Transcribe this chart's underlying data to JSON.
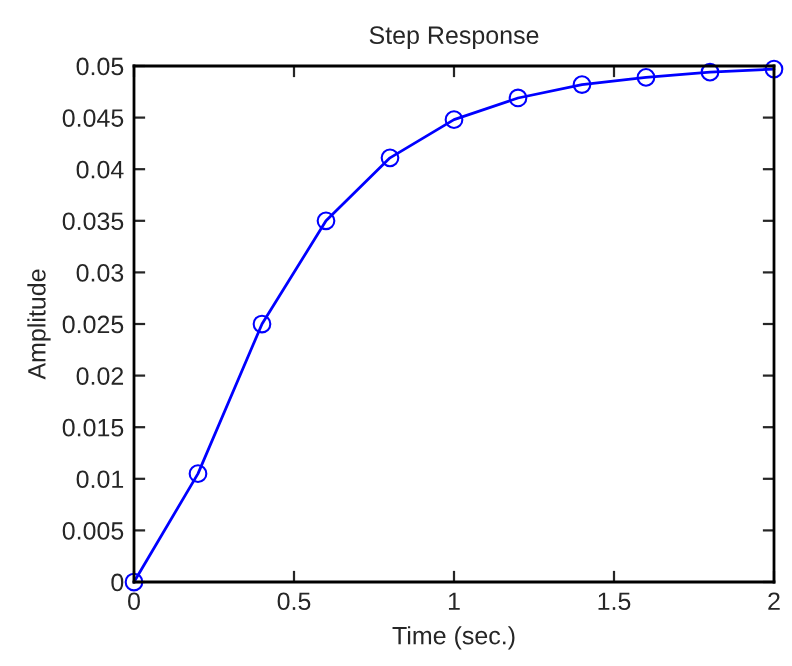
{
  "chart_data": {
    "type": "line",
    "title": "Step Response",
    "xlabel": "Time (sec.)",
    "ylabel": "Amplitude",
    "x": [
      0,
      0.2,
      0.4,
      0.6,
      0.8,
      1.0,
      1.2,
      1.4,
      1.6,
      1.8,
      2.0
    ],
    "series": [
      {
        "color": "#0000ff",
        "values": [
          0,
          0.0105,
          0.025,
          0.035,
          0.0411,
          0.0448,
          0.0469,
          0.0482,
          0.0489,
          0.0494,
          0.0497
        ]
      }
    ],
    "xlim": [
      0,
      2
    ],
    "ylim": [
      0,
      0.05
    ],
    "xticks": [
      0,
      0.5,
      1,
      1.5,
      2
    ],
    "yticks": [
      0,
      0.005,
      0.01,
      0.015,
      0.02,
      0.025,
      0.03,
      0.035,
      0.04,
      0.045,
      0.05
    ],
    "marker": "circle",
    "line_style": "solid",
    "grid": false,
    "legend": false
  }
}
